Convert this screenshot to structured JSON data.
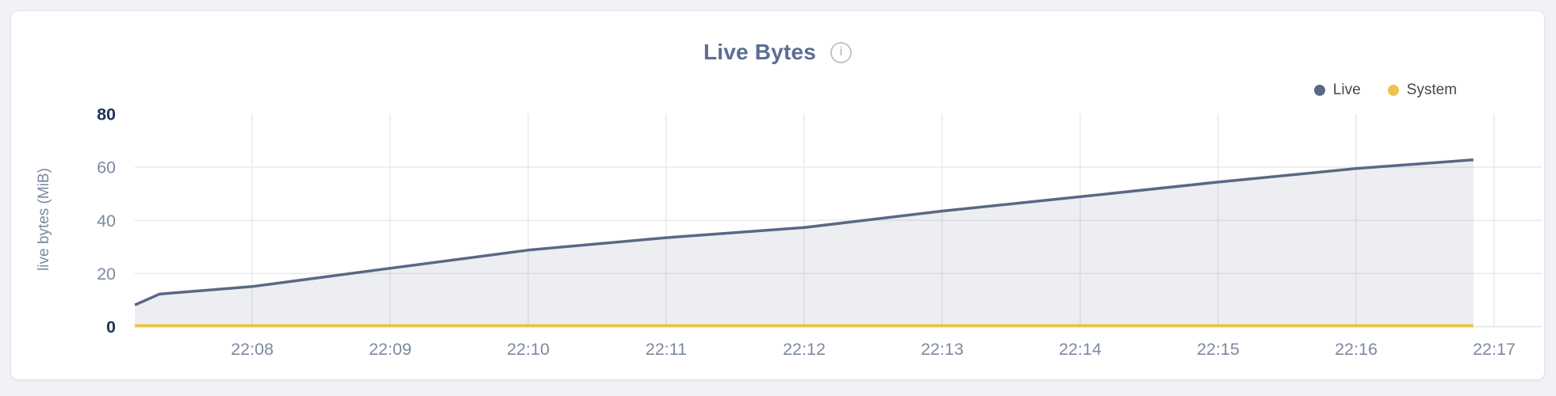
{
  "header": {
    "info_glyph": "i"
  },
  "chart_data": {
    "type": "area",
    "title": "Live Bytes",
    "ylabel": "live bytes (MiB)",
    "ylim": [
      0,
      80
    ],
    "yticks": [
      0,
      20,
      40,
      60,
      80
    ],
    "yticks_emphasized": [
      0,
      80
    ],
    "xticks": [
      "22:08",
      "22:09",
      "22:10",
      "22:11",
      "22:12",
      "22:13",
      "22:14",
      "22:15",
      "22:16",
      "22:17"
    ],
    "x_range_minutes_after_22h": [
      7.15,
      17.05
    ],
    "grid": true,
    "legend_position": "top-right",
    "series": [
      {
        "name": "Live",
        "color": "#5a6884",
        "fill": "rgba(90, 104, 132, 0.11)",
        "line_width": 3.5,
        "points": [
          [
            7.15,
            8.2
          ],
          [
            7.33,
            12.3
          ],
          [
            8.0,
            15.1
          ],
          [
            9.0,
            22.0
          ],
          [
            10.0,
            28.8
          ],
          [
            11.0,
            33.5
          ],
          [
            12.0,
            37.3
          ],
          [
            13.0,
            43.5
          ],
          [
            14.0,
            48.9
          ],
          [
            15.0,
            54.4
          ],
          [
            16.0,
            59.5
          ],
          [
            16.85,
            62.8
          ]
        ]
      },
      {
        "name": "System",
        "color": "#eec24d",
        "fill": "none",
        "line_width": 4,
        "points": [
          [
            7.15,
            0.4
          ],
          [
            16.85,
            0.4
          ]
        ]
      }
    ],
    "colors": {
      "grid_line": "#e9eaee",
      "axis_line": "#e2e3e8",
      "tick_label": "#7c8aa0",
      "tick_label_emphasized": "#1f3357",
      "title": "#5b6d94"
    }
  }
}
